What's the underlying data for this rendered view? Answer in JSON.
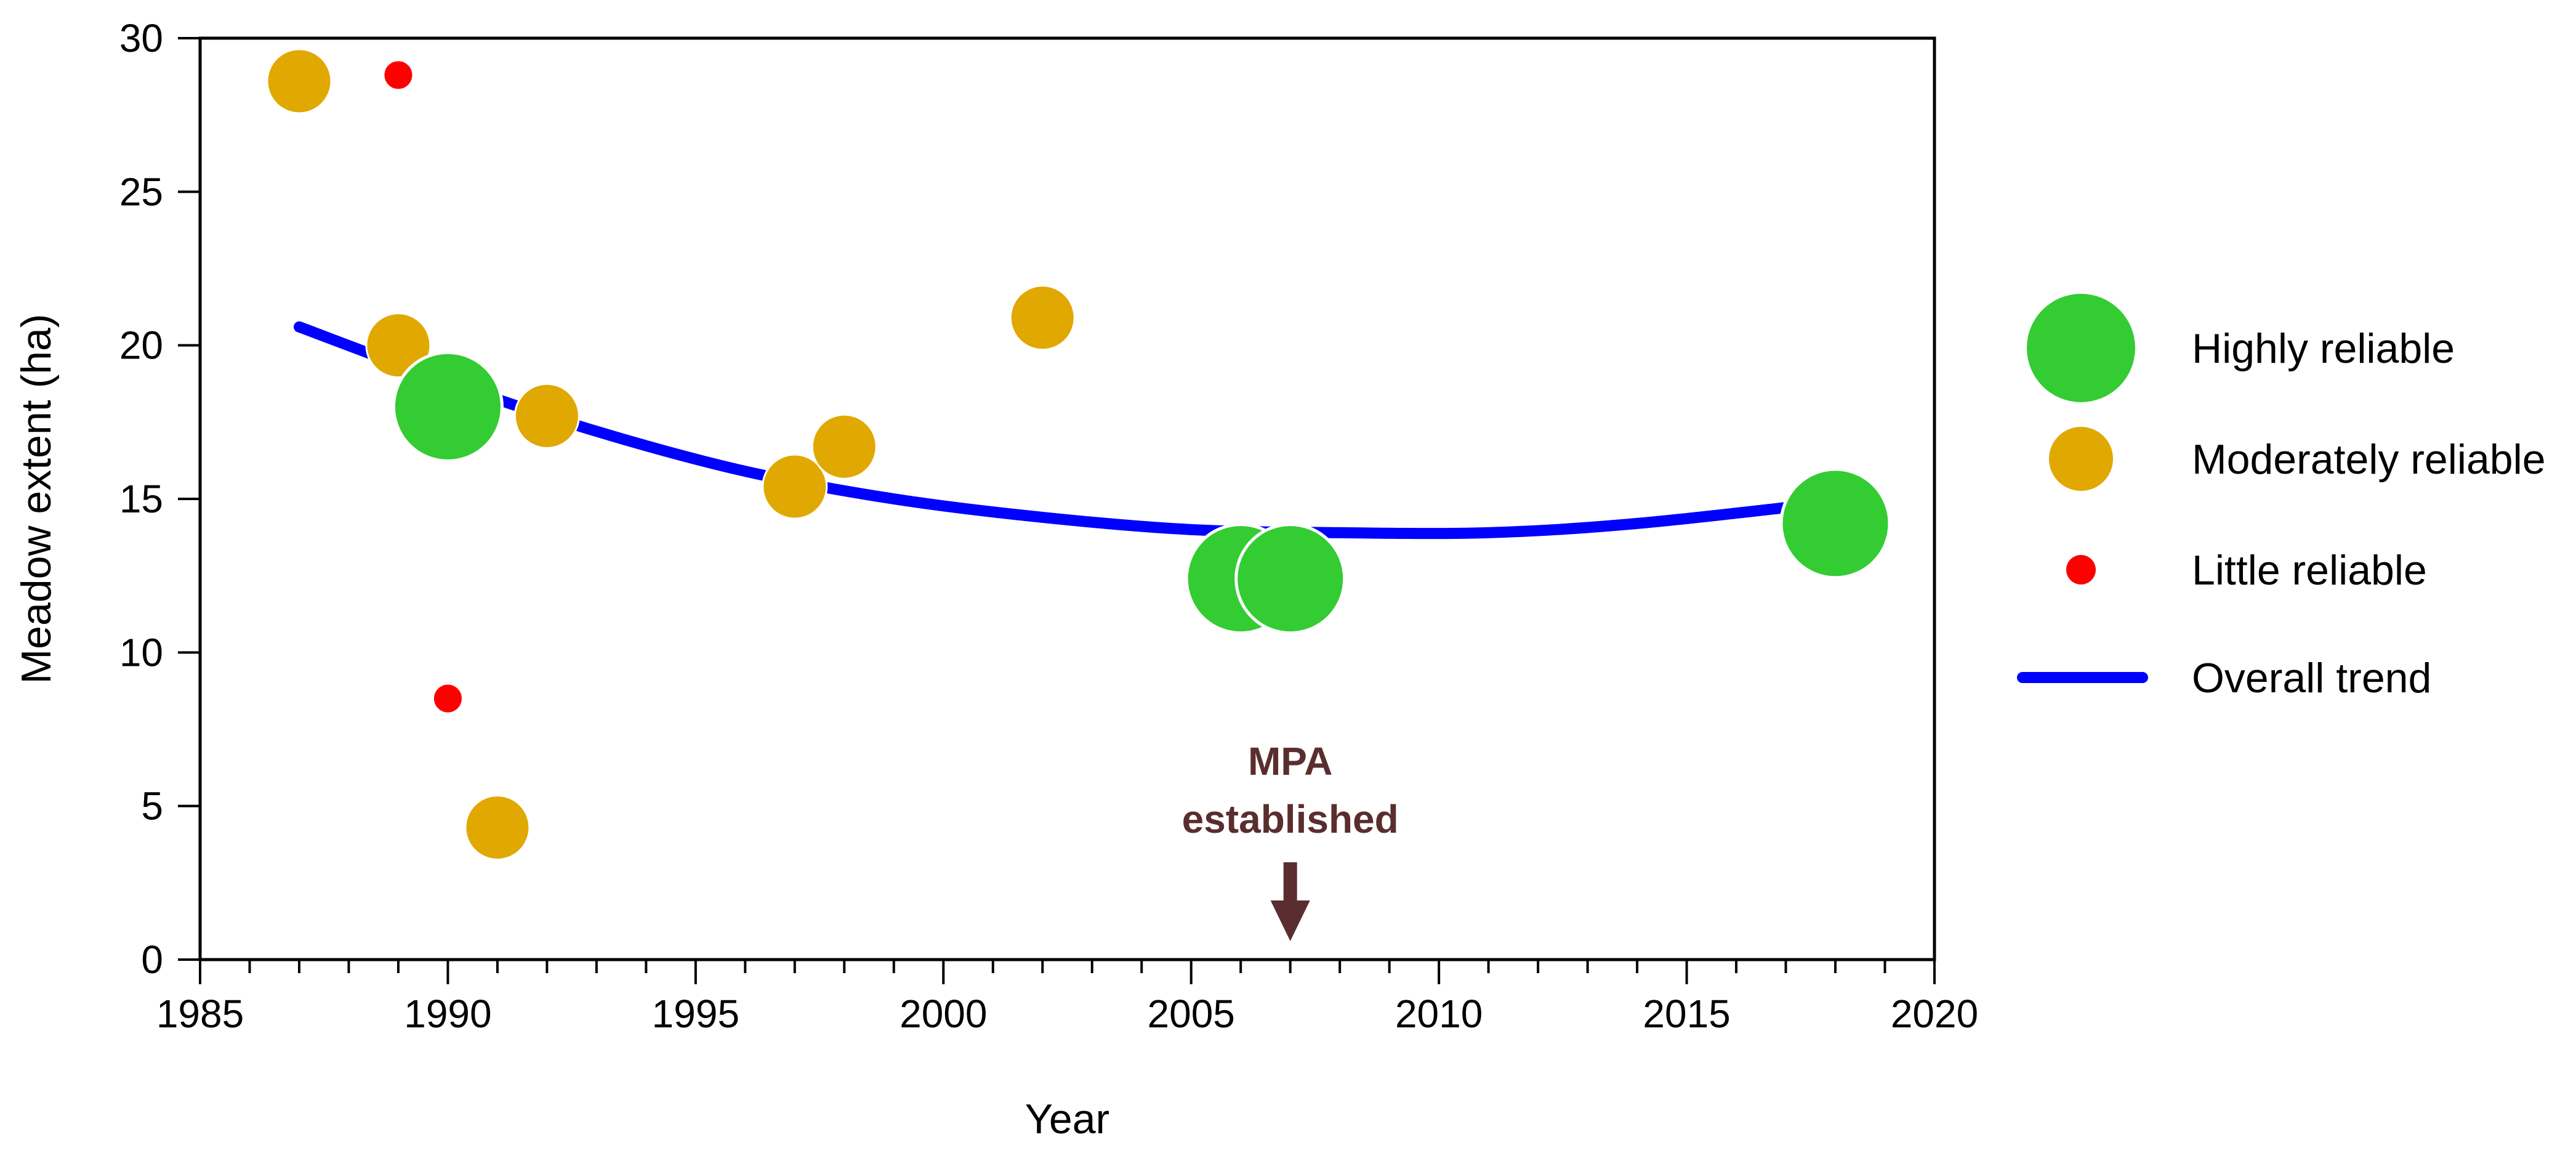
{
  "chart_data": {
    "type": "scatter",
    "title": "",
    "xlabel": "Year",
    "ylabel": "Meadow extent (ha)",
    "xlim": [
      1985,
      2020
    ],
    "ylim": [
      0,
      30
    ],
    "x_ticks": [
      1985,
      1990,
      1995,
      2000,
      2005,
      2010,
      2015,
      2020
    ],
    "y_ticks": [
      0,
      5,
      10,
      15,
      20,
      25,
      30
    ],
    "grid": false,
    "colors": {
      "high": "#33cc33",
      "moderate": "#e0a800",
      "little": "#ff0000",
      "trend": "#0000ff",
      "annotation": "#5a2e2e"
    },
    "series": [
      {
        "name": "Highly reliable",
        "key": "high",
        "points": [
          {
            "x": 1990,
            "y": 18.0
          },
          {
            "x": 2006,
            "y": 12.4
          },
          {
            "x": 2007,
            "y": 12.4
          },
          {
            "x": 2018,
            "y": 14.2
          }
        ]
      },
      {
        "name": "Moderately reliable",
        "key": "moderate",
        "points": [
          {
            "x": 1987,
            "y": 28.6
          },
          {
            "x": 1989,
            "y": 20.0
          },
          {
            "x": 1991,
            "y": 4.3
          },
          {
            "x": 1992,
            "y": 17.7
          },
          {
            "x": 1997,
            "y": 15.4
          },
          {
            "x": 1998,
            "y": 16.7
          },
          {
            "x": 2002,
            "y": 20.9
          }
        ]
      },
      {
        "name": "Little reliable",
        "key": "little",
        "points": [
          {
            "x": 1989,
            "y": 28.8
          },
          {
            "x": 1990,
            "y": 8.5
          }
        ]
      }
    ],
    "trend": {
      "name": "Overall trend",
      "points": [
        {
          "x": 1987,
          "y": 20.6
        },
        {
          "x": 1990,
          "y": 18.8
        },
        {
          "x": 1993,
          "y": 17.2
        },
        {
          "x": 1996,
          "y": 15.9
        },
        {
          "x": 1999,
          "y": 15.0
        },
        {
          "x": 2002,
          "y": 14.4
        },
        {
          "x": 2005,
          "y": 14.0
        },
        {
          "x": 2008,
          "y": 13.9
        },
        {
          "x": 2011,
          "y": 13.9
        },
        {
          "x": 2014,
          "y": 14.2
        },
        {
          "x": 2018,
          "y": 14.9
        }
      ]
    },
    "annotation": {
      "line1": "MPA",
      "line2": "established",
      "x": 2007
    },
    "legend": {
      "placement": "right",
      "items": [
        {
          "label": "Highly reliable",
          "key": "high"
        },
        {
          "label": "Moderately reliable",
          "key": "moderate"
        },
        {
          "label": "Little reliable",
          "key": "little"
        },
        {
          "label": "Overall trend",
          "key": "trend"
        }
      ]
    }
  }
}
